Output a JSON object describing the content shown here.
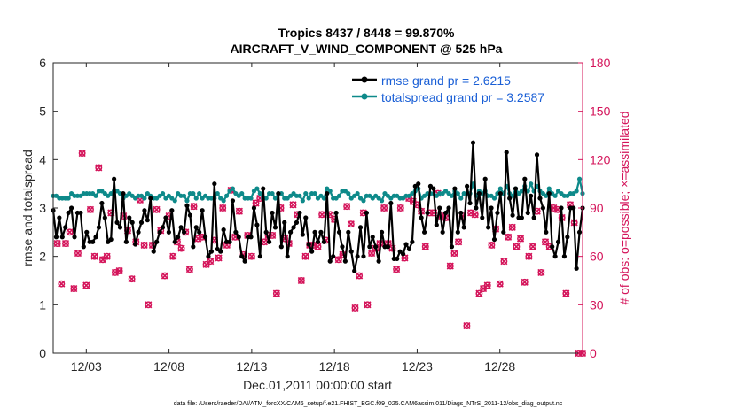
{
  "chart_data": {
    "type": "line",
    "title_line1": "Tropics 8437 / 8448 = 99.870%",
    "title_line2": "AIRCRAFT_V_WIND_COMPONENT @ 525 hPa",
    "xlabel": "Dec.01,2011 00:00:00 start",
    "ylabel_left": "rmse and totalspread",
    "ylabel_right": "# of obs: o=possible; ×=assimilated",
    "ylim_left": [
      0,
      6
    ],
    "ylim_right": [
      0,
      180
    ],
    "xlim": [
      1,
      33
    ],
    "yticks_left": [
      "0",
      "1",
      "2",
      "3",
      "4",
      "5",
      "6"
    ],
    "yticks_right": [
      "0",
      "30",
      "60",
      "90",
      "120",
      "150",
      "180"
    ],
    "xtick_values": [
      3,
      8,
      13,
      18,
      23,
      28
    ],
    "xtick_labels": [
      "12/03",
      "12/08",
      "12/13",
      "12/18",
      "12/23",
      "12/28"
    ],
    "footer": "data file: /Users/raeder/DAI/ATM_forcXX/CAM6_setup/f.e21.FHIST_BGC.f09_025.CAM6assim.011/Diags_NTrS_2011-12/obs_diag_output.nc",
    "colors": {
      "rmse": "#000000",
      "spread": "#0e8a8a",
      "obs": "#d4145a",
      "legend_text": "#1a5fd6"
    },
    "series": [
      {
        "name": "rmse grand pr = 2.6215",
        "values": [
          2.95,
          2.4,
          2.8,
          2.4,
          2.6,
          2.9,
          3.0,
          2.4,
          2.9,
          2.9,
          2.2,
          2.5,
          2.3,
          2.3,
          2.4,
          2.6,
          3.1,
          2.8,
          2.3,
          2.35,
          3.6,
          2.7,
          2.6,
          3.3,
          2.3,
          2.8,
          2.7,
          2.25,
          2.5,
          2.7,
          2.95,
          2.75,
          3.2,
          2.1,
          2.3,
          2.5,
          2.6,
          2.8,
          2.5,
          2.95,
          2.3,
          2.4,
          2.6,
          2.5,
          3.05,
          2.85,
          2.2,
          2.6,
          2.5,
          2.95,
          2.4,
          2.0,
          2.1,
          3.5,
          2.15,
          2.1,
          2.55,
          2.3,
          2.3,
          3.15,
          2.5,
          2.4,
          2.0,
          1.9,
          2.4,
          2.4,
          3.0,
          2.65,
          2.0,
          3.4,
          2.5,
          2.3,
          2.9,
          2.6,
          3.3,
          2.2,
          2.7,
          2.0,
          2.5,
          2.6,
          2.7,
          2.9,
          2.45,
          2.8,
          2.25,
          2.1,
          2.5,
          2.3,
          2.5,
          2.3,
          3.3,
          1.9,
          2.0,
          2.9,
          2.5,
          2.2,
          1.9,
          2.5,
          2.1,
          1.7,
          2.0,
          2.6,
          2.0,
          2.9,
          2.2,
          2.4,
          2.2,
          1.9,
          2.5,
          2.2,
          2.2,
          3.1,
          1.95,
          1.95,
          2.1,
          2.05,
          2.25,
          2.15,
          2.3,
          3.45,
          3.5,
          2.8,
          2.5,
          2.9,
          3.45,
          3.4,
          2.65,
          3.0,
          2.5,
          2.9,
          3.0,
          2.2,
          3.4,
          2.5,
          2.9,
          2.6,
          3.45,
          3.1,
          4.35,
          3.0,
          3.3,
          2.8,
          3.6,
          2.6,
          3.0,
          2.35,
          2.9,
          3.3,
          2.5,
          4.15,
          3.2,
          2.85,
          3.4,
          2.8,
          2.8,
          3.6,
          2.9,
          3.25,
          2.8,
          4.1,
          3.2,
          3.0,
          2.5,
          3.3,
          2.2,
          2.0,
          2.3,
          3.0,
          2.0,
          2.4,
          3.0,
          3.0,
          1.75,
          2.5,
          3.0
        ],
        "color": "#000000"
      },
      {
        "name": "totalspread grand pr = 3.2587",
        "values": [
          3.25,
          3.25,
          3.2,
          3.2,
          3.2,
          3.2,
          3.3,
          3.25,
          3.25,
          3.25,
          3.3,
          3.3,
          3.3,
          3.3,
          3.25,
          3.35,
          3.35,
          3.3,
          3.25,
          3.3,
          3.35,
          3.35,
          3.3,
          3.2,
          3.25,
          3.3,
          3.25,
          3.2,
          3.25,
          3.25,
          3.2,
          3.3,
          3.25,
          3.2,
          3.2,
          3.25,
          3.3,
          3.2,
          3.25,
          3.2,
          3.15,
          3.3,
          3.25,
          3.25,
          3.15,
          3.3,
          3.3,
          3.2,
          3.3,
          3.2,
          3.25,
          3.2,
          3.2,
          3.2,
          3.3,
          3.2,
          3.15,
          3.25,
          3.35,
          3.4,
          3.3,
          3.25,
          3.3,
          3.2,
          3.2,
          3.2,
          3.35,
          3.4,
          3.3,
          3.2,
          3.2,
          3.3,
          3.3,
          3.2,
          3.3,
          3.3,
          3.2,
          3.2,
          3.25,
          3.3,
          3.25,
          3.25,
          3.15,
          3.3,
          3.2,
          3.3,
          3.3,
          3.2,
          3.25,
          3.2,
          3.4,
          3.35,
          3.2,
          3.2,
          3.25,
          3.35,
          3.35,
          3.3,
          3.2,
          3.25,
          3.3,
          3.2,
          3.15,
          3.25,
          3.25,
          3.2,
          3.25,
          3.2,
          3.15,
          3.3,
          3.25,
          3.2,
          3.25,
          3.25,
          3.2,
          3.2,
          3.25,
          3.25,
          3.3,
          3.35,
          3.4,
          3.2,
          3.25,
          3.3,
          3.3,
          3.3,
          3.25,
          3.3,
          3.3,
          3.35,
          3.3,
          3.25,
          3.35,
          3.3,
          3.2,
          3.3,
          3.3,
          3.3,
          3.5,
          3.25,
          3.35,
          3.3,
          3.35,
          3.25,
          3.25,
          3.2,
          3.3,
          3.4,
          3.3,
          3.45,
          3.3,
          3.25,
          3.4,
          3.3,
          3.35,
          3.45,
          3.35,
          3.5,
          3.35,
          3.45,
          3.35,
          3.3,
          3.25,
          3.4,
          3.3,
          3.25,
          3.35,
          3.3,
          3.25,
          3.25,
          3.3,
          3.3,
          3.35,
          3.6,
          3.3
        ],
        "color": "#0e8a8a"
      }
    ],
    "obs_possible_x": [
      1.25,
      1.5,
      1.75,
      2.0,
      2.25,
      2.5,
      2.75,
      3.0,
      3.25,
      3.5,
      3.75,
      4.0,
      4.25,
      4.5,
      4.75,
      5.0,
      5.25,
      5.5,
      5.75,
      6.0,
      6.25,
      6.5,
      6.75,
      7.0,
      7.25,
      7.5,
      7.75,
      8.0,
      8.25,
      8.5,
      8.75,
      9.0,
      9.25,
      9.5,
      9.75,
      10.0,
      10.25,
      10.5,
      10.75,
      11.0,
      11.25,
      11.5,
      11.75,
      12.0,
      12.25,
      12.5,
      12.75,
      13.0,
      13.25,
      13.5,
      13.75,
      14.0,
      14.25,
      14.5,
      14.75,
      15.0,
      15.25,
      15.5,
      15.75,
      16.0,
      16.25,
      16.5,
      16.75,
      17.0,
      17.25,
      17.5,
      17.75,
      18.0,
      18.25,
      18.5,
      18.75,
      19.0,
      19.25,
      19.5,
      19.75,
      20.0,
      20.25,
      20.5,
      20.75,
      21.0,
      21.25,
      21.5,
      21.75,
      22.0,
      22.25,
      22.5,
      22.75,
      23.0,
      23.25,
      23.5,
      23.75,
      24.0,
      24.25,
      24.5,
      24.75,
      25.0,
      25.25,
      25.5,
      25.75,
      26.0,
      26.25,
      26.5,
      26.75,
      27.0,
      27.25,
      27.5,
      27.75,
      28.0,
      28.25,
      28.5,
      28.75,
      29.0,
      29.25,
      29.5,
      29.75,
      30.0,
      30.25,
      30.5,
      30.75,
      31.0,
      31.25,
      31.5,
      31.75,
      32.0,
      32.25,
      32.5,
      32.75,
      33.0
    ],
    "obs_possible": [
      68,
      43,
      68,
      75,
      40,
      62,
      124,
      42,
      89,
      60,
      115,
      58,
      60,
      87,
      50,
      51,
      85,
      76,
      46,
      69,
      95,
      67,
      30,
      67,
      89,
      76,
      48,
      85,
      60,
      69,
      65,
      75,
      52,
      91,
      71,
      72,
      55,
      57,
      70,
      59,
      90,
      67,
      101,
      72,
      88,
      61,
      73,
      60,
      93,
      96,
      69,
      73,
      73,
      37,
      90,
      71,
      68,
      92,
      86,
      45,
      60,
      67,
      67,
      66,
      86,
      70,
      86,
      83,
      58,
      61,
      91,
      80,
      28,
      48,
      87,
      30,
      62,
      65,
      68,
      90,
      68,
      65,
      52,
      90,
      59,
      96,
      94,
      92,
      88,
      66,
      87,
      87,
      99,
      85,
      84,
      54,
      62,
      69,
      85,
      17,
      87,
      86,
      37,
      40,
      42,
      67,
      77,
      43,
      57,
      72,
      78,
      66,
      71,
      44,
      60,
      66,
      88,
      50,
      69,
      66,
      90,
      89,
      84,
      37,
      92,
      81,
      0,
      0
    ],
    "obs_assimilated": [
      68,
      43,
      68,
      75,
      40,
      62,
      124,
      42,
      89,
      60,
      115,
      58,
      60,
      87,
      50,
      51,
      85,
      76,
      46,
      69,
      95,
      67,
      30,
      67,
      89,
      76,
      48,
      85,
      60,
      69,
      65,
      75,
      52,
      91,
      71,
      72,
      55,
      57,
      70,
      59,
      90,
      67,
      101,
      72,
      88,
      61,
      73,
      60,
      93,
      96,
      69,
      73,
      73,
      37,
      90,
      71,
      68,
      92,
      86,
      45,
      60,
      67,
      67,
      66,
      86,
      70,
      86,
      83,
      58,
      61,
      91,
      80,
      28,
      48,
      87,
      30,
      62,
      65,
      68,
      90,
      68,
      65,
      52,
      90,
      59,
      96,
      94,
      92,
      88,
      66,
      87,
      87,
      99,
      85,
      84,
      54,
      62,
      69,
      85,
      17,
      87,
      86,
      37,
      40,
      42,
      67,
      77,
      43,
      57,
      72,
      78,
      66,
      71,
      44,
      60,
      66,
      88,
      50,
      69,
      66,
      90,
      89,
      84,
      37,
      92,
      81,
      0,
      0
    ]
  }
}
